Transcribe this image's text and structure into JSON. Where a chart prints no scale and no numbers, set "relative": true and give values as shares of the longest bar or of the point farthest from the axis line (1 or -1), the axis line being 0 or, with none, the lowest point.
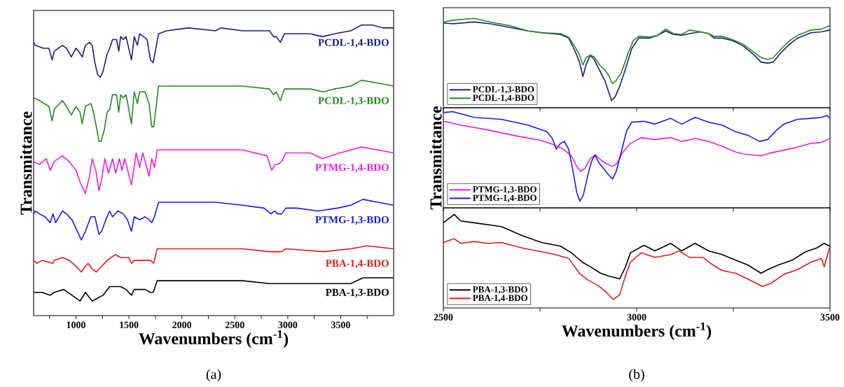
{
  "chart_data": [
    {
      "type": "line",
      "relative": true,
      "xlabel": "Wavenumbers (cm$^{-1}$)",
      "ylabel": "Transmittance",
      "annotations": [
        "(a)"
      ],
      "xlim": [
        600,
        4000
      ],
      "xticks": [
        {
          "value": 750,
          "label": null
        },
        1000,
        {
          "value": 1250,
          "label": null
        },
        1500,
        {
          "value": 1750,
          "label": null
        },
        2000,
        {
          "value": 2250,
          "label": null
        },
        2500,
        {
          "value": 2750,
          "label": null
        },
        3000,
        {
          "value": 3250,
          "label": null
        },
        3500,
        {
          "value": 3750,
          "label": null
        }
      ],
      "series": [
        {
          "name": "PCDL-1,4-BDO",
          "color": "#1c1c80",
          "x": [
            600,
            616,
            693,
            744,
            775,
            795,
            834,
            872,
            910,
            956,
            1000,
            1025,
            1059,
            1089,
            1128,
            1153,
            1179,
            1204,
            1230,
            1255,
            1294,
            1319,
            1345,
            1383,
            1404,
            1422,
            1447,
            1473,
            1524,
            1550,
            1580,
            1601,
            1639,
            1672,
            1703,
            1729,
            1754,
            1780,
            1856,
            2061,
            2317,
            2368,
            2572,
            2828,
            2866,
            2892,
            2930,
            2969,
            3033,
            3212,
            3327,
            3442,
            3595,
            3697,
            3800,
            3902,
            4000
          ],
          "values": [
            0.94,
            0.93,
            0.92,
            0.92,
            0.88,
            0.91,
            0.92,
            0.93,
            0.92,
            0.89,
            0.92,
            0.91,
            0.89,
            0.93,
            0.94,
            0.93,
            0.87,
            0.83,
            0.82,
            0.84,
            0.9,
            0.92,
            0.95,
            0.95,
            0.91,
            0.96,
            0.95,
            0.96,
            0.88,
            0.96,
            0.93,
            0.97,
            0.96,
            0.95,
            0.88,
            0.87,
            0.92,
            0.97,
            0.98,
            0.99,
            0.98,
            0.99,
            0.98,
            0.98,
            0.96,
            0.96,
            0.94,
            0.97,
            0.97,
            0.97,
            0.96,
            0.97,
            0.98,
            1,
            1,
            0.99,
            0.99
          ]
        },
        {
          "name": "PCDL-1,3-BDO",
          "color": "#1f8a1f",
          "x": [
            600,
            655,
            744,
            775,
            795,
            872,
            910,
            956,
            1000,
            1038,
            1059,
            1089,
            1140,
            1166,
            1192,
            1217,
            1238,
            1268,
            1294,
            1319,
            1345,
            1383,
            1404,
            1422,
            1447,
            1473,
            1524,
            1550,
            1580,
            1601,
            1652,
            1690,
            1716,
            1734,
            1754,
            1780,
            1856,
            2317,
            2368,
            2572,
            2828,
            2866,
            2892,
            2930,
            2969,
            3212,
            3340,
            3442,
            3595,
            3697,
            3851,
            4000
          ],
          "values": [
            0.75,
            0.74,
            0.72,
            0.67,
            0.71,
            0.74,
            0.72,
            0.69,
            0.72,
            0.7,
            0.66,
            0.72,
            0.73,
            0.7,
            0.65,
            0.6,
            0.6,
            0.64,
            0.7,
            0.71,
            0.76,
            0.76,
            0.7,
            0.76,
            0.75,
            0.76,
            0.66,
            0.77,
            0.73,
            0.77,
            0.77,
            0.73,
            0.65,
            0.65,
            0.71,
            0.79,
            0.79,
            0.79,
            0.79,
            0.79,
            0.78,
            0.76,
            0.77,
            0.74,
            0.78,
            0.78,
            0.77,
            0.78,
            0.79,
            0.81,
            0.8,
            0.79
          ]
        },
        {
          "name": "PTMG-1,4-BDO",
          "color": "#e81ee8",
          "x": [
            600,
            655,
            719,
            757,
            795,
            872,
            936,
            1000,
            1038,
            1089,
            1128,
            1153,
            1187,
            1217,
            1243,
            1273,
            1307,
            1345,
            1376,
            1409,
            1435,
            1460,
            1524,
            1568,
            1601,
            1631,
            1690,
            1716,
            1741,
            1767,
            1856,
            2317,
            2368,
            2572,
            2803,
            2849,
            2879,
            2905,
            2943,
            2982,
            3212,
            3327,
            3493,
            3697,
            3851,
            4000
          ],
          "values": [
            0.53,
            0.52,
            0.54,
            0.5,
            0.53,
            0.55,
            0.53,
            0.5,
            0.46,
            0.42,
            0.48,
            0.54,
            0.5,
            0.43,
            0.47,
            0.54,
            0.49,
            0.54,
            0.49,
            0.54,
            0.5,
            0.54,
            0.45,
            0.56,
            0.51,
            0.56,
            0.48,
            0.54,
            0.51,
            0.57,
            0.57,
            0.57,
            0.57,
            0.57,
            0.55,
            0.5,
            0.52,
            0.52,
            0.53,
            0.56,
            0.56,
            0.54,
            0.56,
            0.58,
            0.57,
            0.56
          ]
        },
        {
          "name": "PTMG-1,3-BDO",
          "color": "#1a1ae0",
          "x": [
            600,
            616,
            655,
            706,
            757,
            782,
            808,
            872,
            910,
            962,
            1013,
            1051,
            1089,
            1140,
            1179,
            1217,
            1243,
            1281,
            1319,
            1345,
            1396,
            1447,
            1486,
            1524,
            1550,
            1601,
            1652,
            1690,
            1716,
            1741,
            1780,
            1933,
            2317,
            2572,
            2777,
            2841,
            2879,
            2905,
            2943,
            2982,
            3084,
            3288,
            3467,
            3595,
            3710,
            3851,
            4000
          ],
          "values": [
            0.35,
            0.36,
            0.35,
            0.34,
            0.32,
            0.35,
            0.32,
            0.36,
            0.35,
            0.33,
            0.29,
            0.26,
            0.29,
            0.34,
            0.34,
            0.28,
            0.29,
            0.33,
            0.36,
            0.34,
            0.36,
            0.35,
            0.33,
            0.29,
            0.34,
            0.33,
            0.34,
            0.33,
            0.32,
            0.34,
            0.39,
            0.39,
            0.39,
            0.38,
            0.37,
            0.35,
            0.36,
            0.35,
            0.35,
            0.37,
            0.37,
            0.36,
            0.37,
            0.38,
            0.4,
            0.39,
            0.38
          ]
        },
        {
          "name": "PBA-1,4-BDO",
          "color": "#e01b1b",
          "x": [
            600,
            629,
            680,
            782,
            795,
            872,
            936,
            1000,
            1051,
            1089,
            1115,
            1153,
            1192,
            1243,
            1294,
            1371,
            1422,
            1498,
            1524,
            1550,
            1626,
            1703,
            1734,
            1767,
            1933,
            2355,
            2572,
            2828,
            2943,
            2982,
            3340,
            3595,
            3749,
            4000
          ],
          "values": [
            0.19,
            0.18,
            0.19,
            0.18,
            0.19,
            0.2,
            0.19,
            0.17,
            0.15,
            0.17,
            0.18,
            0.16,
            0.15,
            0.17,
            0.19,
            0.21,
            0.2,
            0.2,
            0.18,
            0.19,
            0.19,
            0.19,
            0.18,
            0.23,
            0.23,
            0.23,
            0.23,
            0.22,
            0.22,
            0.23,
            0.22,
            0.23,
            0.24,
            0.23
          ]
        },
        {
          "name": "PBA-1,3-BDO",
          "color": "#000000",
          "x": [
            600,
            642,
            680,
            757,
            795,
            885,
            962,
            1038,
            1089,
            1153,
            1204,
            1255,
            1319,
            1422,
            1473,
            1524,
            1550,
            1652,
            1703,
            1729,
            1767,
            1933,
            2355,
            2572,
            2828,
            2943,
            3007,
            3340,
            3595,
            3710,
            4000
          ],
          "values": [
            0.08,
            0.08,
            0.08,
            0.07,
            0.08,
            0.09,
            0.07,
            0.05,
            0.08,
            0.05,
            0.06,
            0.07,
            0.1,
            0.1,
            0.09,
            0.07,
            0.09,
            0.09,
            0.08,
            0.08,
            0.12,
            0.12,
            0.12,
            0.12,
            0.11,
            0.11,
            0.11,
            0.11,
            0.11,
            0.13,
            0.13
          ]
        }
      ]
    },
    {
      "type": "line",
      "relative": true,
      "legend": "bottom left",
      "tick_labels": false,
      "xlim": [
        2500,
        3500
      ],
      "xticks": [
        2500,
        {
          "value": 2750,
          "label": null
        },
        3000,
        {
          "value": 3250,
          "label": null
        },
        3500
      ],
      "series": [
        {
          "name": "PCDL-1,3-BDO",
          "color": "#1c1c80",
          "x": [
            2500,
            2524,
            2580,
            2622,
            2671,
            2719,
            2754,
            2803,
            2824,
            2841,
            2852,
            2861,
            2869,
            2880,
            2890,
            2904,
            2918,
            2928,
            2935,
            2944,
            2956,
            2970,
            2987,
            3005,
            3033,
            3054,
            3075,
            3095,
            3116,
            3137,
            3165,
            3186,
            3200,
            3221,
            3249,
            3276,
            3304,
            3322,
            3339,
            3353,
            3374,
            3395,
            3416,
            3451,
            3478,
            3500
          ],
          "values": [
            0.95,
            0.94,
            0.96,
            0.94,
            0.9,
            0.86,
            0.84,
            0.82,
            0.78,
            0.63,
            0.51,
            0.35,
            0.48,
            0.59,
            0.54,
            0.42,
            0.3,
            0.17,
            0.08,
            0.12,
            0.24,
            0.42,
            0.66,
            0.78,
            0.78,
            0.81,
            0.86,
            0.82,
            0.81,
            0.83,
            0.85,
            0.83,
            0.78,
            0.78,
            0.75,
            0.69,
            0.59,
            0.51,
            0.5,
            0.51,
            0.62,
            0.71,
            0.78,
            0.84,
            0.85,
            0.87
          ]
        },
        {
          "name": "PCDL-1,4-BDO",
          "color": "#1f8a1f",
          "x": [
            2500,
            2524,
            2580,
            2622,
            2671,
            2719,
            2754,
            2803,
            2824,
            2841,
            2852,
            2861,
            2869,
            2880,
            2890,
            2904,
            2918,
            2928,
            2937,
            2946,
            2960,
            2977,
            2991,
            3005,
            3033,
            3054,
            3075,
            3095,
            3116,
            3137,
            3165,
            3186,
            3200,
            3221,
            3249,
            3276,
            3304,
            3322,
            3339,
            3353,
            3374,
            3395,
            3416,
            3451,
            3478,
            3500
          ],
          "values": [
            0.96,
            0.98,
            1,
            0.96,
            0.92,
            0.86,
            0.84,
            0.83,
            0.79,
            0.68,
            0.59,
            0.48,
            0.56,
            0.59,
            0.57,
            0.48,
            0.42,
            0.36,
            0.27,
            0.3,
            0.39,
            0.6,
            0.75,
            0.8,
            0.79,
            0.81,
            0.88,
            0.83,
            0.82,
            0.87,
            0.85,
            0.83,
            0.8,
            0.8,
            0.76,
            0.71,
            0.62,
            0.56,
            0.54,
            0.56,
            0.66,
            0.75,
            0.81,
            0.87,
            0.88,
            0.92
          ]
        }
      ]
    },
    {
      "type": "line",
      "relative": true,
      "legend": "bottom left",
      "tick_labels": false,
      "ylabel": "Transmittance",
      "xlim": [
        2500,
        3500
      ],
      "xticks": [
        2500,
        {
          "value": 2750,
          "label": null
        },
        3000,
        {
          "value": 3250,
          "label": null
        },
        3500
      ],
      "series": [
        {
          "name": "PTMG-1,3-BDO",
          "color": "#e81ee8",
          "x": [
            2500,
            2545,
            2615,
            2685,
            2754,
            2789,
            2810,
            2831,
            2845,
            2855,
            2866,
            2880,
            2893,
            2907,
            2921,
            2937,
            2949,
            2963,
            2984,
            3012,
            3047,
            3088,
            3116,
            3151,
            3186,
            3221,
            3256,
            3276,
            3322,
            3346,
            3381,
            3416,
            3451,
            3478,
            3500
          ],
          "values": [
            0.9,
            0.86,
            0.81,
            0.75,
            0.7,
            0.65,
            0.61,
            0.54,
            0.43,
            0.38,
            0.41,
            0.51,
            0.55,
            0.5,
            0.46,
            0.43,
            0.46,
            0.57,
            0.67,
            0.73,
            0.71,
            0.73,
            0.69,
            0.72,
            0.69,
            0.64,
            0.58,
            0.56,
            0.54,
            0.57,
            0.6,
            0.63,
            0.67,
            0.68,
            0.72
          ]
        },
        {
          "name": "PTMG-1,4-BDO",
          "color": "#1a1ae0",
          "x": [
            2500,
            2524,
            2580,
            2650,
            2719,
            2768,
            2782,
            2792,
            2803,
            2813,
            2824,
            2834,
            2845,
            2853,
            2862,
            2873,
            2883,
            2892,
            2902,
            2914,
            2928,
            2938,
            2948,
            2960,
            2974,
            2987,
            3019,
            3047,
            3088,
            3116,
            3151,
            3186,
            3221,
            3256,
            3290,
            3318,
            3339,
            3360,
            3381,
            3416,
            3451,
            3478,
            3492,
            3500
          ],
          "values": [
            0.99,
            1,
            0.94,
            0.92,
            0.86,
            0.79,
            0.72,
            0.61,
            0.67,
            0.69,
            0.61,
            0.41,
            0.16,
            0.07,
            0.13,
            0.33,
            0.48,
            0.55,
            0.47,
            0.41,
            0.34,
            0.3,
            0.39,
            0.58,
            0.8,
            0.89,
            0.9,
            0.87,
            0.93,
            0.87,
            0.94,
            0.89,
            0.86,
            0.79,
            0.75,
            0.69,
            0.71,
            0.8,
            0.87,
            0.92,
            0.93,
            0.94,
            0.96,
            0.93
          ]
        }
      ]
    },
    {
      "type": "line",
      "relative": true,
      "legend": "bottom left",
      "xlabel": "Wavenumbers (cm$^{-1}$)",
      "annotations": [
        "(b)"
      ],
      "xlim": [
        2500,
        3500
      ],
      "xticks": [
        2500,
        {
          "value": 2750,
          "label": null
        },
        3000,
        {
          "value": 3250,
          "label": null
        },
        3500
      ],
      "series": [
        {
          "name": "PBA-1,3-BDO",
          "color": "#000000",
          "x": [
            2500,
            2528,
            2545,
            2580,
            2650,
            2705,
            2726,
            2754,
            2803,
            2831,
            2859,
            2880,
            2907,
            2928,
            2956,
            2970,
            2984,
            3019,
            3047,
            3088,
            3116,
            3151,
            3186,
            3221,
            3256,
            3287,
            3322,
            3339,
            3367,
            3402,
            3437,
            3465,
            3485,
            3500
          ],
          "values": [
            0.91,
            1,
            0.93,
            0.91,
            0.87,
            0.77,
            0.74,
            0.7,
            0.66,
            0.59,
            0.49,
            0.44,
            0.37,
            0.34,
            0.31,
            0.43,
            0.59,
            0.67,
            0.61,
            0.69,
            0.61,
            0.69,
            0.61,
            0.57,
            0.51,
            0.46,
            0.37,
            0.41,
            0.46,
            0.51,
            0.6,
            0.64,
            0.69,
            0.66
          ]
        },
        {
          "name": "PBA-1,4-BDO",
          "color": "#e01b1b",
          "x": [
            2500,
            2528,
            2545,
            2580,
            2615,
            2650,
            2705,
            2754,
            2789,
            2824,
            2852,
            2873,
            2900,
            2921,
            2939,
            2956,
            2970,
            2984,
            3012,
            3047,
            3088,
            3109,
            3137,
            3172,
            3193,
            3221,
            3256,
            3287,
            3325,
            3346,
            3381,
            3416,
            3451,
            3478,
            3485,
            3500
          ],
          "values": [
            0.7,
            0.74,
            0.69,
            0.71,
            0.69,
            0.7,
            0.64,
            0.6,
            0.57,
            0.53,
            0.37,
            0.3,
            0.24,
            0.17,
            0.09,
            0.14,
            0.33,
            0.49,
            0.59,
            0.54,
            0.57,
            0.61,
            0.54,
            0.54,
            0.47,
            0.4,
            0.37,
            0.31,
            0.23,
            0.26,
            0.36,
            0.41,
            0.49,
            0.53,
            0.44,
            0.66
          ]
        }
      ]
    }
  ]
}
